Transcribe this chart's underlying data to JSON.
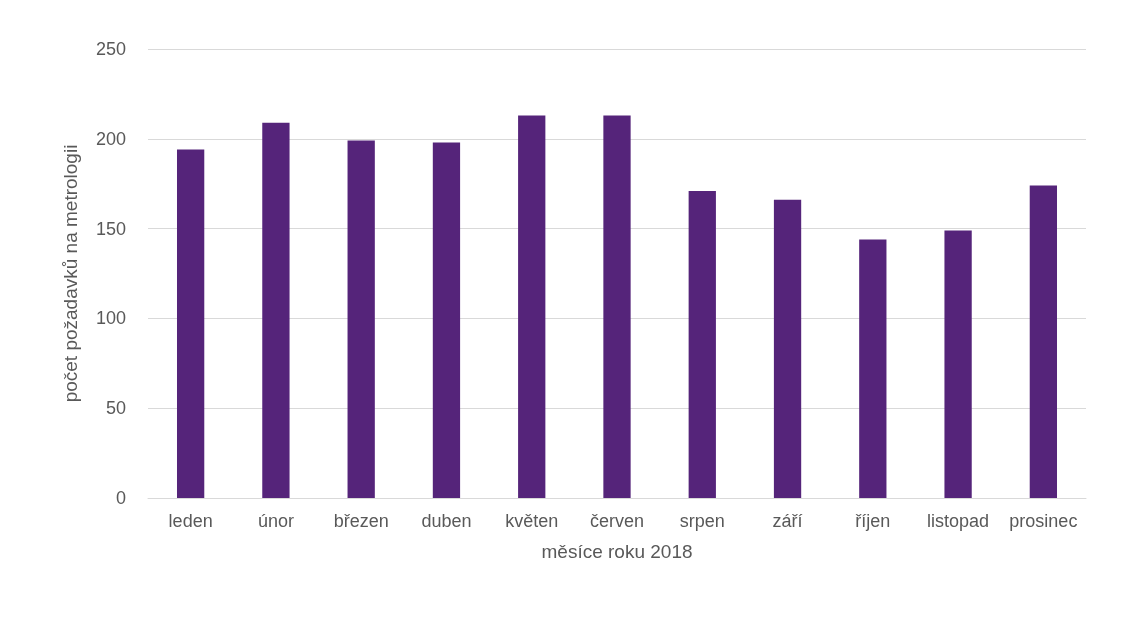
{
  "chart_data": {
    "type": "bar",
    "xlabel": "měsíce roku 2018",
    "ylabel": "počet požadavků na metrologii",
    "categories": [
      "leden",
      "únor",
      "březen",
      "duben",
      "květen",
      "červen",
      "srpen",
      "září",
      "říjen",
      "listopad",
      "prosinec"
    ],
    "values": [
      194,
      209,
      199,
      198,
      213,
      213,
      171,
      166,
      144,
      149,
      174
    ],
    "color": "#55247a",
    "ylim": [
      0,
      250
    ],
    "yticks": [
      0,
      50,
      100,
      150,
      200,
      250
    ],
    "grid": "y"
  }
}
